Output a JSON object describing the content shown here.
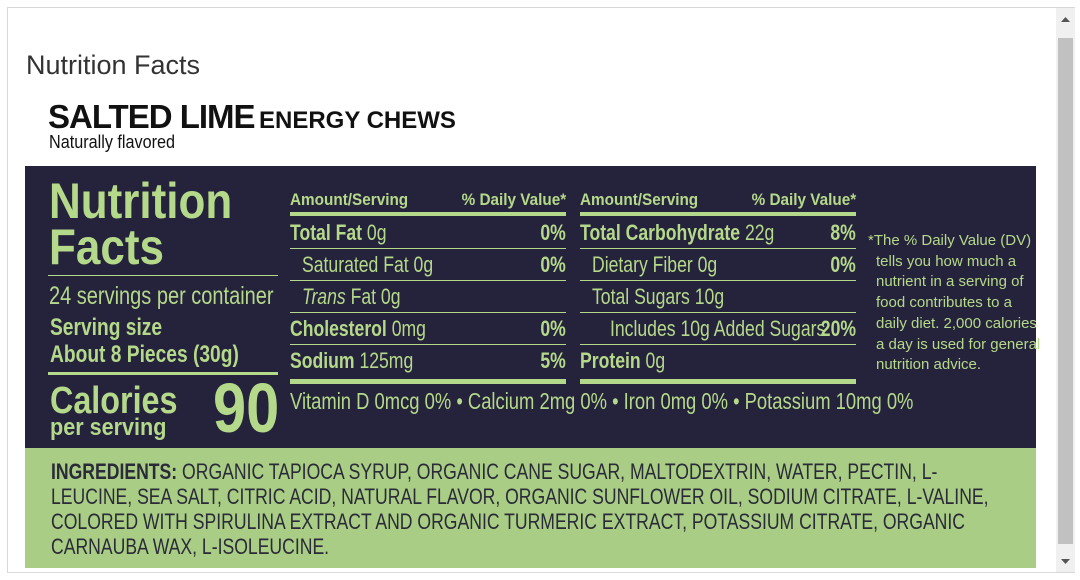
{
  "window": {
    "title": "Nutrition Facts"
  },
  "product": {
    "name": "SALTED LIME",
    "type": "ENERGY CHEWS",
    "flavor": "Naturally flavored"
  },
  "label": {
    "heading": [
      "Nutrition",
      "Facts"
    ],
    "servings": "24 servings per container",
    "serving_size_label": "Serving size",
    "serving_size": "About 8 Pieces (30g)",
    "calories_label": "Calories",
    "calories_sub": "per serving",
    "calories": 90,
    "tables": [
      {
        "headers": [
          "Amount/Serving",
          "% Daily Value*"
        ],
        "rows": [
          {
            "name": "Total Fat",
            "amount": "0g",
            "dv": "0%",
            "bold": true,
            "indent": 0
          },
          {
            "name": "Saturated Fat",
            "amount": "0g",
            "dv": "0%",
            "bold": false,
            "indent": 1
          },
          {
            "name": "Trans Fat",
            "amount": "0g",
            "bold": false,
            "indent": 1,
            "italic_first_word": true
          },
          {
            "name": "Cholesterol",
            "amount": "0mg",
            "dv": "0%",
            "bold": true,
            "indent": 0
          },
          {
            "name": "Sodium",
            "amount": "125mg",
            "dv": "5%",
            "bold": true,
            "indent": 0
          }
        ]
      },
      {
        "headers": [
          "Amount/Serving",
          "% Daily Value*"
        ],
        "rows": [
          {
            "name": "Total Carbohydrate",
            "amount": "22g",
            "dv": "8%",
            "bold": true,
            "indent": 0
          },
          {
            "name": "Dietary Fiber",
            "amount": "0g",
            "dv": "0%",
            "bold": false,
            "indent": 1
          },
          {
            "name": "Total Sugars",
            "amount": "10g",
            "bold": false,
            "indent": 1
          },
          {
            "name": "Includes 10g Added Sugars",
            "dv": "20%",
            "bold": false,
            "indent": 2
          },
          {
            "name": "Protein",
            "amount": "0g",
            "bold": true,
            "indent": 0
          }
        ]
      }
    ],
    "vitamins": [
      "Vitamin D 0mcg 0%",
      "Calcium 2mg 0%",
      "Iron 0mg 0%",
      "Potassium 10mg 0%"
    ],
    "footnote": [
      "*The % Daily Value (DV)",
      "tells you how much a",
      "nutrient in a serving of",
      "food contributes to a",
      "daily diet. 2,000 calories",
      "a day is used for general",
      "nutrition advice."
    ]
  },
  "ingredients": {
    "label": "INGREDIENTS:",
    "text": "ORGANIC TAPIOCA SYRUP, ORGANIC CANE SUGAR, MALTODEXTRIN, WATER, PECTIN, L-LEUCINE, SEA SALT, CITRIC ACID, NATURAL FLAVOR, ORGANIC SUNFLOWER OIL, SODIUM CITRATE, L-VALINE, COLORED WITH SPIRULINA EXTRACT AND ORGANIC TURMERIC EXTRACT, POTASSIUM CITRATE, ORGANIC CARNAUBA WAX, L-ISOLEUCINE."
  }
}
